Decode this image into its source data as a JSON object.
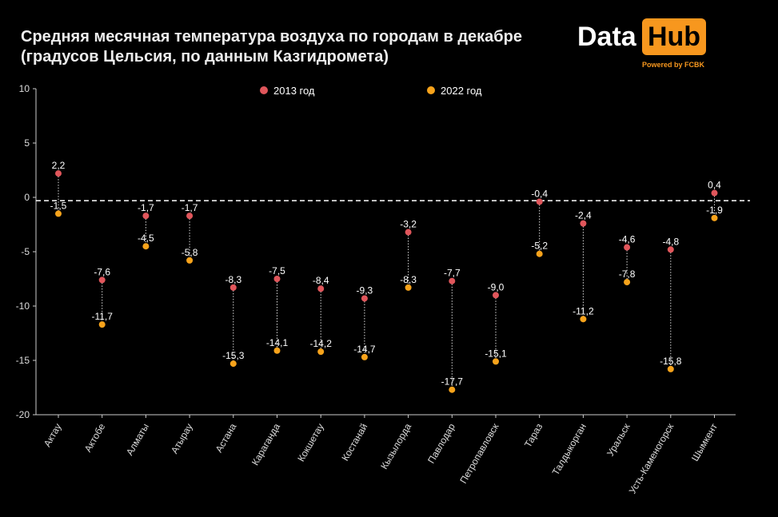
{
  "header": {
    "title_line1": "Средняя месячная температура воздуха по городам в декабре",
    "title_line2": "(градусов Цельсия, по данным Казгидромета)"
  },
  "logo": {
    "data": "Data",
    "hub": "Hub",
    "powered_by": "Powered by FCBK"
  },
  "colors": {
    "series_2013": "#e0565b",
    "series_2022": "#f7a31b",
    "background": "#000000",
    "axis": "#cccccc"
  },
  "chart_data": {
    "type": "dumbbell",
    "categories": [
      "Актау",
      "Актобе",
      "Алматы",
      "Атырау",
      "Астана",
      "Караганда",
      "Кокшетау",
      "Костанай",
      "Кызылорда",
      "Павлодар",
      "Петропавловск",
      "Тараз",
      "Талдыкорган",
      "Уральск",
      "Усть-Каменогорск",
      "Шымкент"
    ],
    "series": [
      {
        "name": "2013 год",
        "color": "#e0565b",
        "values": [
          2.2,
          -7.6,
          -1.7,
          -1.7,
          -8.3,
          -7.5,
          -8.4,
          -9.3,
          -3.2,
          -7.7,
          -9.0,
          -0.4,
          -2.4,
          -4.6,
          -4.8,
          0.4
        ]
      },
      {
        "name": "2022 год",
        "color": "#f7a31b",
        "values": [
          -1.5,
          -11.7,
          -4.5,
          -5.8,
          -15.3,
          -14.1,
          -14.2,
          -14.7,
          -8.3,
          -17.7,
          -15.1,
          -5.2,
          -11.2,
          -7.8,
          -15.8,
          -1.9
        ]
      }
    ],
    "labels_2013": [
      "2,2",
      "-7,6",
      "-1,7",
      "-1,7",
      "-8,3",
      "-7,5",
      "-8,4",
      "-9,3",
      "-3,2",
      "-7,7",
      "-9,0",
      "-0,4",
      "-2,4",
      "-4,6",
      "-4,8",
      "0,4"
    ],
    "labels_2022": [
      "-1,5",
      "-11,7",
      "-4,5",
      "-5,8",
      "-15,3",
      "-14,1",
      "-14,2",
      "-14,7",
      "-8,3",
      "-17,7",
      "-15,1",
      "-5,2",
      "-11,2",
      "-7,8",
      "-15,8",
      "-1,9"
    ],
    "yticks": [
      10,
      5,
      0,
      -5,
      -10,
      -15,
      -20
    ],
    "ylim": [
      -20,
      10
    ],
    "reference_line": -0.3,
    "legend_placement": "top-center",
    "grid": false
  }
}
